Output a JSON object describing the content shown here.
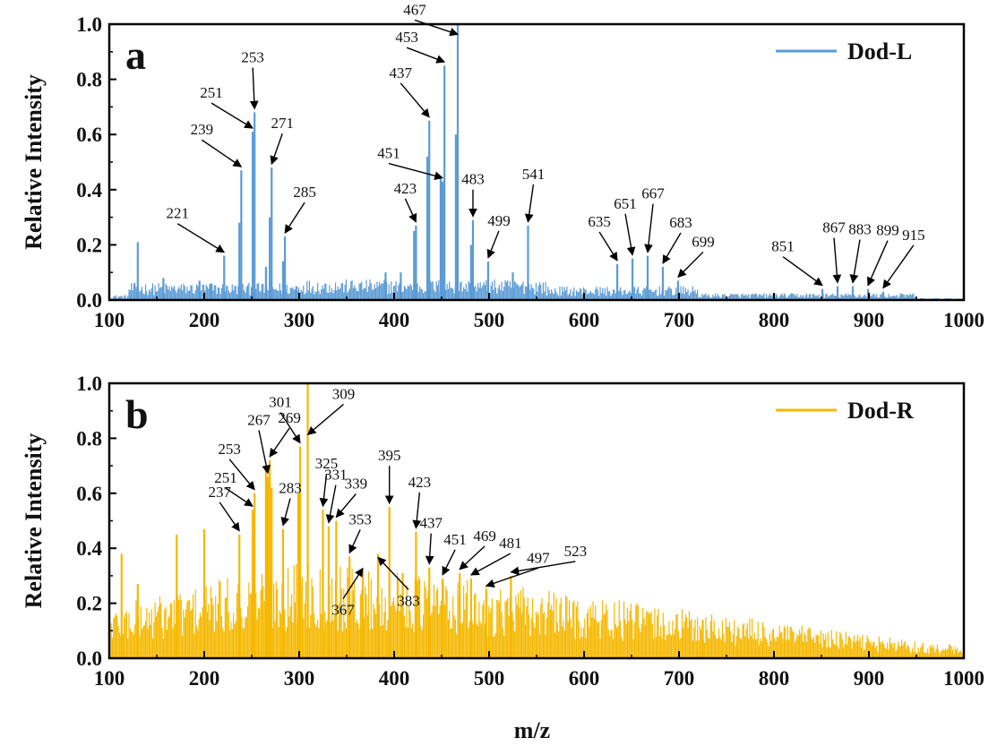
{
  "colors": {
    "panel_a": "#5B9BD5",
    "panel_b": "#F5B800",
    "axis": "#000000"
  },
  "chart_data": [
    {
      "type": "bar",
      "panel_letter": "a",
      "legend": "Dod-L",
      "legend_position": "top-right",
      "xlabel": "m/z",
      "ylabel": "Relative Intensity",
      "xlim": [
        100,
        1000
      ],
      "ylim": [
        0,
        1.0
      ],
      "xticks": [
        "100",
        "200",
        "300",
        "400",
        "500",
        "600",
        "700",
        "800",
        "900",
        "1000"
      ],
      "yticks": [
        "0.0",
        "0.2",
        "0.4",
        "0.6",
        "0.8",
        "1.0"
      ],
      "peaks": [
        {
          "mz": 130,
          "intensity": 0.21
        },
        {
          "mz": 157,
          "intensity": 0.08
        },
        {
          "mz": 195,
          "intensity": 0.07
        },
        {
          "mz": 207,
          "intensity": 0.06
        },
        {
          "mz": 221,
          "intensity": 0.16
        },
        {
          "mz": 237,
          "intensity": 0.28
        },
        {
          "mz": 239,
          "intensity": 0.47
        },
        {
          "mz": 251,
          "intensity": 0.61
        },
        {
          "mz": 253,
          "intensity": 0.68
        },
        {
          "mz": 265,
          "intensity": 0.12
        },
        {
          "mz": 269,
          "intensity": 0.3
        },
        {
          "mz": 271,
          "intensity": 0.48
        },
        {
          "mz": 283,
          "intensity": 0.14
        },
        {
          "mz": 285,
          "intensity": 0.23
        },
        {
          "mz": 297,
          "intensity": 0.05
        },
        {
          "mz": 391,
          "intensity": 0.1
        },
        {
          "mz": 407,
          "intensity": 0.1
        },
        {
          "mz": 421,
          "intensity": 0.25
        },
        {
          "mz": 423,
          "intensity": 0.27
        },
        {
          "mz": 435,
          "intensity": 0.52
        },
        {
          "mz": 437,
          "intensity": 0.65
        },
        {
          "mz": 449,
          "intensity": 0.45
        },
        {
          "mz": 451,
          "intensity": 0.43
        },
        {
          "mz": 453,
          "intensity": 0.85
        },
        {
          "mz": 465,
          "intensity": 0.6
        },
        {
          "mz": 467,
          "intensity": 1.0
        },
        {
          "mz": 481,
          "intensity": 0.2
        },
        {
          "mz": 483,
          "intensity": 0.29
        },
        {
          "mz": 499,
          "intensity": 0.14
        },
        {
          "mz": 525,
          "intensity": 0.1
        },
        {
          "mz": 541,
          "intensity": 0.27
        },
        {
          "mz": 635,
          "intensity": 0.13
        },
        {
          "mz": 651,
          "intensity": 0.15
        },
        {
          "mz": 667,
          "intensity": 0.16
        },
        {
          "mz": 683,
          "intensity": 0.12
        },
        {
          "mz": 699,
          "intensity": 0.07
        },
        {
          "mz": 851,
          "intensity": 0.04
        },
        {
          "mz": 867,
          "intensity": 0.05
        },
        {
          "mz": 883,
          "intensity": 0.05
        },
        {
          "mz": 899,
          "intensity": 0.04
        },
        {
          "mz": 915,
          "intensity": 0.03
        }
      ],
      "annotations": [
        {
          "text": "221",
          "mz": 221,
          "intensity": 0.16
        },
        {
          "text": "239",
          "mz": 239,
          "intensity": 0.47
        },
        {
          "text": "251",
          "mz": 251,
          "intensity": 0.61
        },
        {
          "text": "253",
          "mz": 253,
          "intensity": 0.68
        },
        {
          "text": "271",
          "mz": 271,
          "intensity": 0.48
        },
        {
          "text": "285",
          "mz": 285,
          "intensity": 0.23
        },
        {
          "text": "423",
          "mz": 423,
          "intensity": 0.27
        },
        {
          "text": "437",
          "mz": 437,
          "intensity": 0.65
        },
        {
          "text": "451",
          "mz": 451,
          "intensity": 0.43
        },
        {
          "text": "453",
          "mz": 453,
          "intensity": 0.85
        },
        {
          "text": "467",
          "mz": 467,
          "intensity": 0.95
        },
        {
          "text": "483",
          "mz": 483,
          "intensity": 0.29
        },
        {
          "text": "499",
          "mz": 499,
          "intensity": 0.14
        },
        {
          "text": "541",
          "mz": 541,
          "intensity": 0.27
        },
        {
          "text": "635",
          "mz": 635,
          "intensity": 0.13
        },
        {
          "text": "651",
          "mz": 651,
          "intensity": 0.15
        },
        {
          "text": "667",
          "mz": 667,
          "intensity": 0.16
        },
        {
          "text": "683",
          "mz": 683,
          "intensity": 0.12
        },
        {
          "text": "699",
          "mz": 699,
          "intensity": 0.07
        },
        {
          "text": "851",
          "mz": 851,
          "intensity": 0.04
        },
        {
          "text": "867",
          "mz": 867,
          "intensity": 0.05
        },
        {
          "text": "883",
          "mz": 883,
          "intensity": 0.05
        },
        {
          "text": "899",
          "mz": 899,
          "intensity": 0.04
        },
        {
          "text": "915",
          "mz": 915,
          "intensity": 0.03
        }
      ]
    },
    {
      "type": "bar",
      "panel_letter": "b",
      "legend": "Dod-R",
      "legend_position": "top-right",
      "xlabel": "m/z",
      "ylabel": "Relative Intensity",
      "xlim": [
        100,
        1000
      ],
      "ylim": [
        0,
        1.0
      ],
      "xticks": [
        "100",
        "200",
        "300",
        "400",
        "500",
        "600",
        "700",
        "800",
        "900",
        "1000"
      ],
      "yticks": [
        "0.0",
        "0.2",
        "0.4",
        "0.6",
        "0.8",
        "1.0"
      ],
      "peaks": [
        {
          "mz": 113,
          "intensity": 0.38
        },
        {
          "mz": 130,
          "intensity": 0.27
        },
        {
          "mz": 171,
          "intensity": 0.45
        },
        {
          "mz": 200,
          "intensity": 0.47
        },
        {
          "mz": 237,
          "intensity": 0.45
        },
        {
          "mz": 251,
          "intensity": 0.54
        },
        {
          "mz": 253,
          "intensity": 0.6
        },
        {
          "mz": 265,
          "intensity": 0.69
        },
        {
          "mz": 267,
          "intensity": 0.66
        },
        {
          "mz": 269,
          "intensity": 0.72
        },
        {
          "mz": 271,
          "intensity": 0.62
        },
        {
          "mz": 283,
          "intensity": 0.47
        },
        {
          "mz": 299,
          "intensity": 0.6
        },
        {
          "mz": 301,
          "intensity": 0.77
        },
        {
          "mz": 309,
          "intensity": 1.0
        },
        {
          "mz": 325,
          "intensity": 0.54
        },
        {
          "mz": 331,
          "intensity": 0.48
        },
        {
          "mz": 339,
          "intensity": 0.5
        },
        {
          "mz": 353,
          "intensity": 0.37
        },
        {
          "mz": 367,
          "intensity": 0.32
        },
        {
          "mz": 383,
          "intensity": 0.38
        },
        {
          "mz": 395,
          "intensity": 0.55
        },
        {
          "mz": 409,
          "intensity": 0.31
        },
        {
          "mz": 423,
          "intensity": 0.46
        },
        {
          "mz": 437,
          "intensity": 0.33
        },
        {
          "mz": 451,
          "intensity": 0.29
        },
        {
          "mz": 469,
          "intensity": 0.31
        },
        {
          "mz": 481,
          "intensity": 0.29
        },
        {
          "mz": 497,
          "intensity": 0.25
        },
        {
          "mz": 523,
          "intensity": 0.3
        },
        {
          "mz": 725,
          "intensity": 0.14
        },
        {
          "mz": 905,
          "intensity": 0.06
        },
        {
          "mz": 985,
          "intensity": 0.05
        }
      ],
      "annotations": [
        {
          "text": "237",
          "mz": 237,
          "intensity": 0.45
        },
        {
          "text": "251",
          "mz": 251,
          "intensity": 0.54
        },
        {
          "text": "253",
          "mz": 253,
          "intensity": 0.6
        },
        {
          "text": "267",
          "mz": 267,
          "intensity": 0.66
        },
        {
          "text": "269",
          "mz": 269,
          "intensity": 0.72
        },
        {
          "text": "283",
          "mz": 283,
          "intensity": 0.47
        },
        {
          "text": "301",
          "mz": 301,
          "intensity": 0.77
        },
        {
          "text": "309",
          "mz": 309,
          "intensity": 0.8
        },
        {
          "text": "325",
          "mz": 325,
          "intensity": 0.54
        },
        {
          "text": "331",
          "mz": 331,
          "intensity": 0.48
        },
        {
          "text": "339",
          "mz": 339,
          "intensity": 0.5
        },
        {
          "text": "353",
          "mz": 353,
          "intensity": 0.37
        },
        {
          "text": "367",
          "mz": 367,
          "intensity": 0.34
        },
        {
          "text": "383",
          "mz": 383,
          "intensity": 0.38
        },
        {
          "text": "395",
          "mz": 395,
          "intensity": 0.55
        },
        {
          "text": "423",
          "mz": 423,
          "intensity": 0.46
        },
        {
          "text": "437",
          "mz": 437,
          "intensity": 0.33
        },
        {
          "text": "451",
          "mz": 451,
          "intensity": 0.29
        },
        {
          "text": "469",
          "mz": 469,
          "intensity": 0.31
        },
        {
          "text": "481",
          "mz": 481,
          "intensity": 0.29
        },
        {
          "text": "497",
          "mz": 497,
          "intensity": 0.25
        },
        {
          "text": "523",
          "mz": 523,
          "intensity": 0.3
        }
      ]
    }
  ]
}
